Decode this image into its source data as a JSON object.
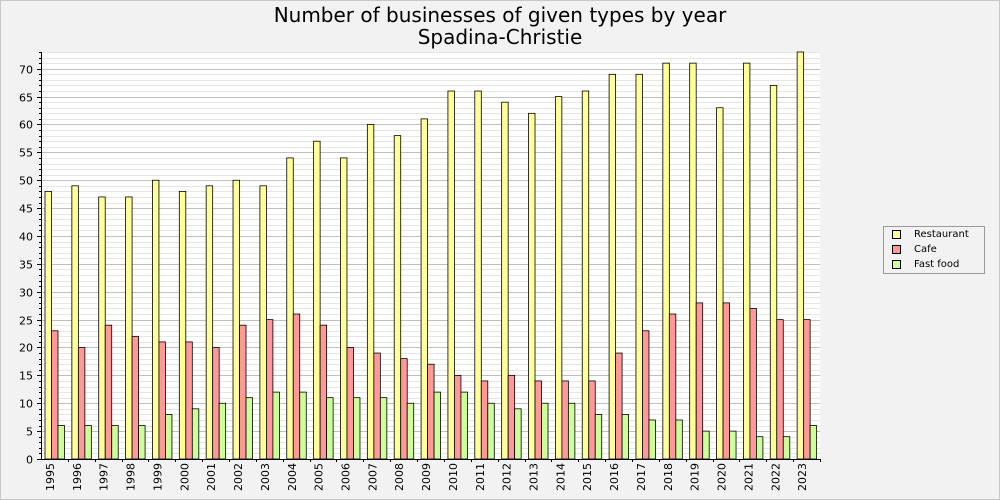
{
  "chart_data": {
    "type": "bar",
    "title": "Number of businesses of given types by year",
    "subtitle": "Spadina-Christie",
    "categories": [
      "1995",
      "1996",
      "1997",
      "1998",
      "1999",
      "2000",
      "2001",
      "2002",
      "2003",
      "2004",
      "2005",
      "2006",
      "2007",
      "2008",
      "2009",
      "2010",
      "2011",
      "2012",
      "2013",
      "2014",
      "2015",
      "2016",
      "2017",
      "2018",
      "2019",
      "2020",
      "2021",
      "2022",
      "2023"
    ],
    "series": [
      {
        "name": "Restaurant",
        "color": "#ffff99",
        "values": [
          48,
          49,
          47,
          47,
          50,
          48,
          49,
          50,
          49,
          54,
          57,
          54,
          60,
          58,
          61,
          66,
          66,
          64,
          62,
          65,
          66,
          69,
          69,
          71,
          71,
          63,
          71,
          67,
          73
        ]
      },
      {
        "name": "Cafe",
        "color": "#ff9999",
        "values": [
          23,
          20,
          24,
          22,
          21,
          21,
          20,
          24,
          25,
          26,
          24,
          20,
          19,
          18,
          17,
          15,
          14,
          15,
          14,
          14,
          14,
          19,
          23,
          26,
          28,
          28,
          27,
          25,
          25
        ]
      },
      {
        "name": "Fast food",
        "color": "#ccff99",
        "values": [
          6,
          6,
          6,
          6,
          8,
          9,
          10,
          11,
          12,
          12,
          11,
          11,
          11,
          10,
          12,
          12,
          10,
          9,
          10,
          10,
          8,
          8,
          7,
          7,
          5,
          5,
          4,
          4,
          6
        ]
      }
    ],
    "ylim": [
      0,
      73
    ],
    "yticks": [
      0,
      5,
      10,
      15,
      20,
      25,
      30,
      35,
      40,
      45,
      50,
      55,
      60,
      65,
      70
    ],
    "legend_position": "right",
    "grid": true
  }
}
